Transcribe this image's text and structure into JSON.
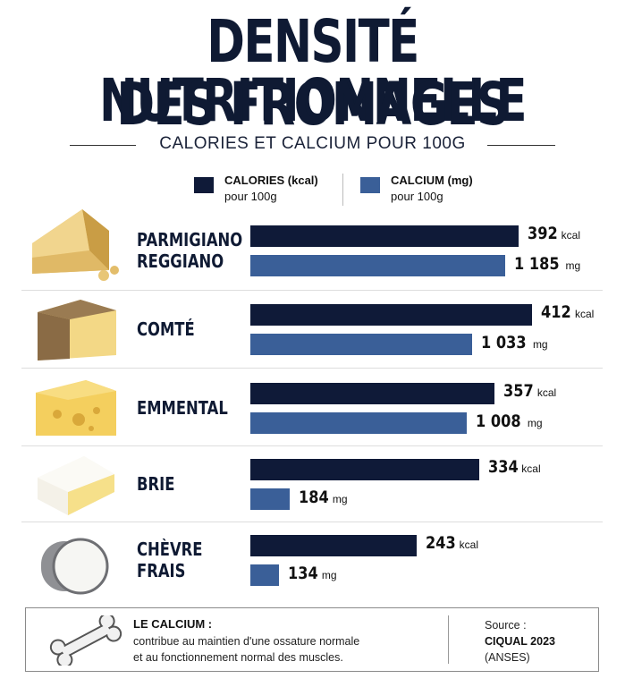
{
  "title_line1": "DENSITÉ NUTRITIONNELLE",
  "title_line2": "DES FROMAGES",
  "subtitle": "CALORIES ET CALCIUM POUR 100G",
  "legend": {
    "calories_label": "CALORIES (kcal)",
    "calories_sub": "pour 100g",
    "calcium_label": "CALCIUM (mg)",
    "calcium_sub": "pour 100g"
  },
  "colors": {
    "calories": "#0f1a38",
    "calcium": "#3a5f98"
  },
  "chart_data": {
    "type": "bar",
    "orientation": "horizontal",
    "categories": [
      "PARMIGIANO\nREGGIANO",
      "COMTÉ",
      "EMMENTAL",
      "BRIE",
      "CHÈVRE\nFRAIS"
    ],
    "series": [
      {
        "name": "CALORIES (kcal)",
        "unit": "kcal",
        "values": [
          392,
          412,
          357,
          334,
          243
        ],
        "labels": [
          "392",
          "412",
          "357",
          "334",
          "243"
        ]
      },
      {
        "name": "CALCIUM (mg)",
        "unit": "mg",
        "values": [
          1185,
          1033,
          1008,
          184,
          134
        ],
        "labels": [
          "1 185",
          "1 033",
          "1 008",
          "184",
          "134"
        ]
      }
    ]
  },
  "footer": {
    "title": "LE CALCIUM :",
    "desc_line1": "contribue au maintien d'une ossature normale",
    "desc_line2": "et au fonctionnement normal des muscles.",
    "source_label": "Source :",
    "source_name": "CIQUAL 2023",
    "source_org": "(ANSES)"
  },
  "icons": [
    "parmesan-icon",
    "comte-icon",
    "emmental-icon",
    "brie-icon",
    "chevre-icon",
    "bone-icon"
  ]
}
